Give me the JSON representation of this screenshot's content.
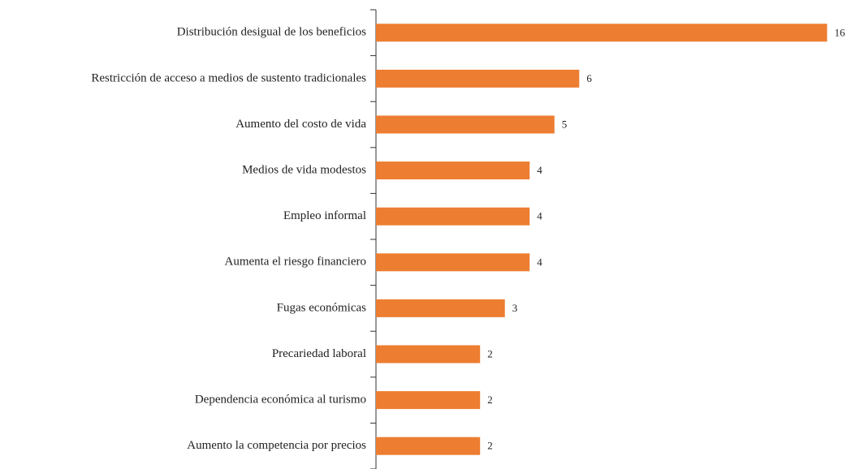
{
  "chart_data": {
    "type": "barh",
    "categories": [
      "Distribución desigual de los beneficios",
      "Restricción de acceso a medios de sustento tradicionales",
      "Aumento del costo de vida",
      "Medios de vida modestos",
      "Empleo informal",
      "Aumenta el riesgo financiero",
      "Fugas económicas",
      "Precariedad laboral",
      "Dependencia económica al turismo",
      "Aumento la competencia por precios"
    ],
    "values": [
      16,
      6,
      5,
      4,
      4,
      4,
      3,
      2,
      2,
      2
    ],
    "color": "#ed7d31",
    "xlim": [
      -2.2,
      16.8
    ]
  }
}
